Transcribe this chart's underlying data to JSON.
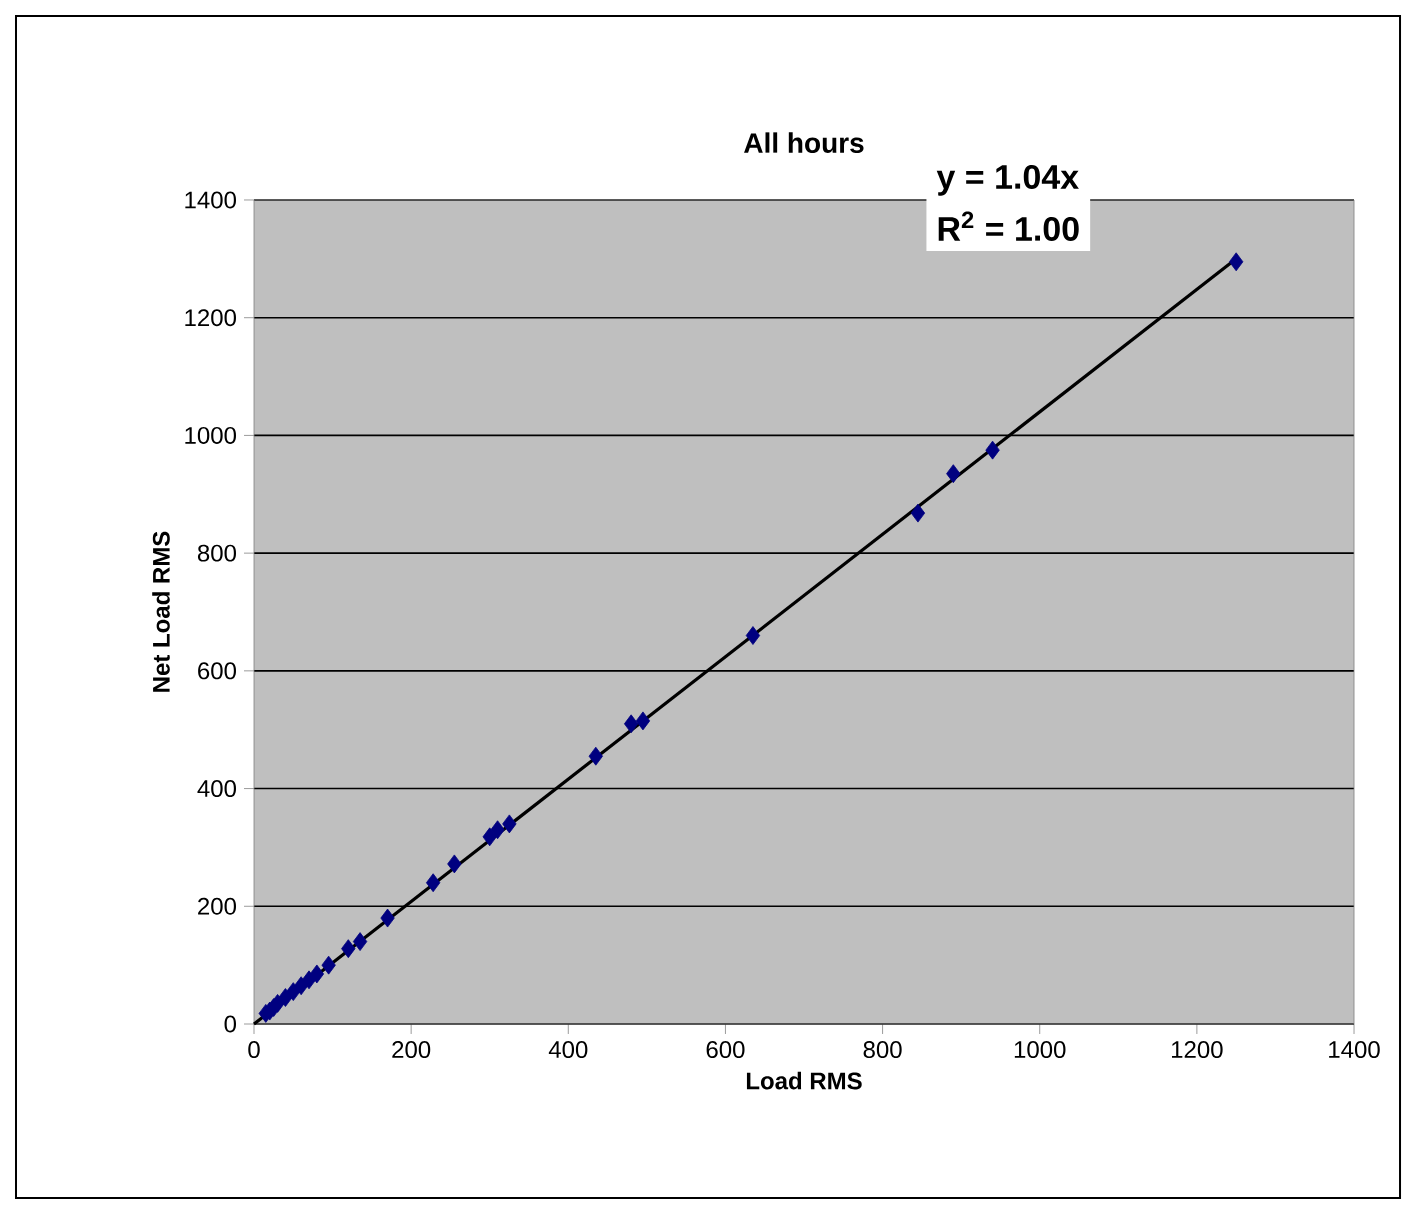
{
  "chart_data": {
    "type": "scatter",
    "title": "All hours",
    "xlabel": "Load RMS",
    "ylabel": "Net Load RMS",
    "xlim": [
      0,
      1400
    ],
    "xticks": [
      0,
      200,
      400,
      600,
      800,
      1000,
      1200,
      1400
    ],
    "ylim": [
      0,
      1400
    ],
    "yticks": [
      0,
      200,
      400,
      600,
      800,
      1000,
      1200,
      1400
    ],
    "grid": "y",
    "annotations": [
      "y = 1.04x",
      "R$^{2}$ = 1.00"
    ],
    "series": [
      {
        "marker": "diamond",
        "color": "#000080",
        "x": [
          15,
          20,
          25,
          30,
          40,
          50,
          60,
          70,
          80,
          95,
          120,
          135,
          170,
          228,
          255,
          300,
          310,
          325,
          435,
          480,
          495,
          635,
          845,
          890,
          940,
          1250
        ],
        "values": [
          18,
          22,
          28,
          35,
          45,
          55,
          65,
          75,
          85,
          100,
          128,
          140,
          180,
          240,
          272,
          318,
          330,
          340,
          455,
          510,
          515,
          660,
          868,
          935,
          975,
          1295
        ]
      },
      {
        "type": "line",
        "color": "#000000",
        "x": [
          0,
          1250
        ],
        "values": [
          0,
          1300
        ]
      }
    ]
  }
}
